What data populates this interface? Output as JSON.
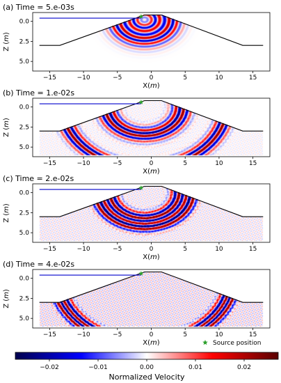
{
  "figure": {
    "colorbar_label": "Normalized Velocity",
    "colorbar_ticks": [
      "−0.02",
      "−0.01",
      "0.00",
      "0.01",
      "0.02"
    ],
    "colorbar_values": [
      -0.02,
      -0.01,
      0.0,
      0.01,
      0.02
    ],
    "colorbar_range": [
      -0.027,
      0.027
    ],
    "legend_label": "Source position",
    "colormap": [
      "#00004d",
      "#0000ff",
      "#ffffff",
      "#ff0000",
      "#5a0000"
    ]
  },
  "chart_data": [
    {
      "type": "heatmap",
      "title": "(a) Time = 5.e-03s",
      "xlabel": "X(m)",
      "ylabel": "Z (m)",
      "xlim": [
        -17.5,
        17.5
      ],
      "ylim": [
        6.2,
        -1.1
      ],
      "xticks": [
        -15,
        -10,
        -5,
        0,
        5,
        10,
        15
      ],
      "yticks": [
        0.0,
        2.5,
        5.0
      ],
      "source": {
        "x": -1.5,
        "z": -0.6
      },
      "waves": [
        {
          "x": -1.0,
          "z": -0.2,
          "r": 3.4,
          "spread": 2.0
        },
        {
          "x": -1.0,
          "z": -0.2,
          "r": 2.0,
          "spread": 1.5
        }
      ]
    },
    {
      "type": "heatmap",
      "title": "(b) Time = 1.e-02s",
      "xlabel": "X(m)",
      "ylabel": "Z (m)",
      "xlim": [
        -17.5,
        17.5
      ],
      "ylim": [
        6.2,
        -1.1
      ],
      "xticks": [
        -15,
        -10,
        -5,
        0,
        5,
        10,
        15
      ],
      "yticks": [
        0.0,
        2.5,
        5.0
      ],
      "source": {
        "x": -1.5,
        "z": -0.6
      },
      "waves": [
        {
          "x": -1.0,
          "z": 0.0,
          "r": 5.5,
          "spread": 1.5
        },
        {
          "x": -1.0,
          "z": 0.0,
          "r": 12.0,
          "spread": 1.2
        }
      ]
    },
    {
      "type": "heatmap",
      "title": "(c) Time = 2.e-02s",
      "xlabel": "X(m)",
      "ylabel": "Z (m)",
      "xlim": [
        -17.5,
        17.5
      ],
      "ylim": [
        6.2,
        -1.1
      ],
      "xticks": [
        -15,
        -10,
        -5,
        0,
        5,
        10,
        15
      ],
      "yticks": [
        0.0,
        2.5,
        5.0
      ],
      "source": {
        "x": -1.5,
        "z": -0.6
      },
      "waves": [
        {
          "x": -1.0,
          "z": 0.0,
          "r": 7.0,
          "spread": 1.0
        },
        {
          "x": -1.0,
          "z": 0.0,
          "r": 5.0,
          "spread": 1.2
        }
      ]
    },
    {
      "type": "heatmap",
      "title": "(d) Time = 4.e-02s",
      "xlabel": "X(m)",
      "ylabel": "Z (m)",
      "xlim": [
        -17.5,
        17.5
      ],
      "ylim": [
        6.2,
        -1.1
      ],
      "xticks": [
        -15,
        -10,
        -5,
        0,
        5,
        10,
        15
      ],
      "yticks": [
        0.0,
        2.5,
        5.0
      ],
      "source": {
        "x": -1.5,
        "z": -0.6
      },
      "waves": [
        {
          "x": -1.0,
          "z": 0.0,
          "r": 12.5,
          "spread": 1.0
        },
        {
          "x": -1.0,
          "z": 0.0,
          "r": 13.5,
          "spread": 0.8
        }
      ]
    }
  ],
  "geometry_model": {
    "surface": [
      [
        -16.5,
        3.0
      ],
      [
        -13.5,
        3.0
      ],
      [
        -1.0,
        -0.8
      ],
      [
        1.5,
        -0.8
      ],
      [
        13.5,
        3.0
      ],
      [
        16.5,
        3.0
      ]
    ],
    "blue_line": {
      "x": [
        -16.5,
        -1.5
      ],
      "z": -0.4
    }
  }
}
